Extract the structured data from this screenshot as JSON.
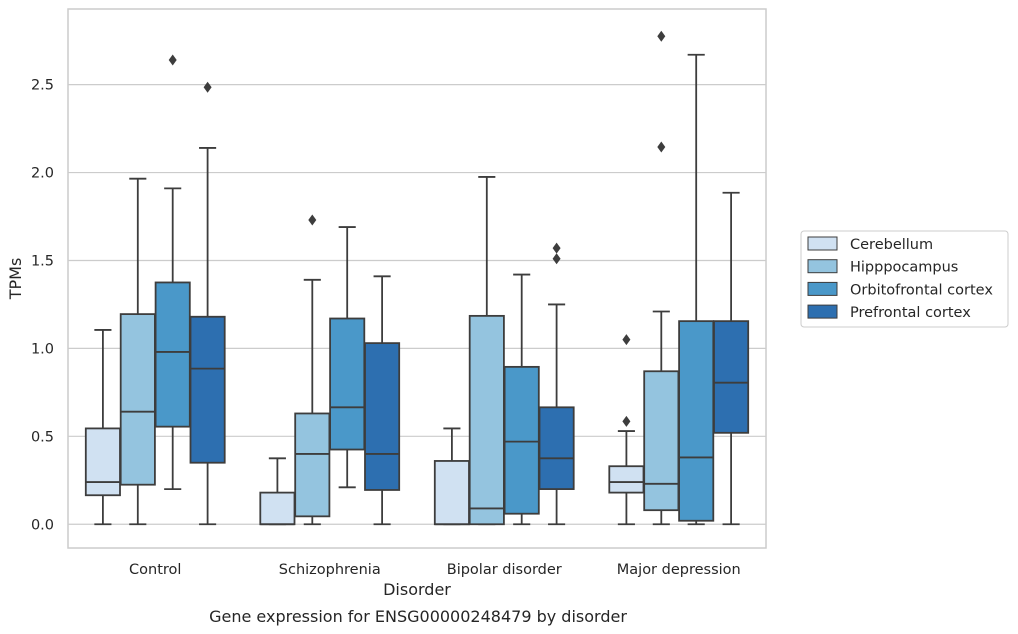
{
  "caption": "Gene expression for ENSG00000248479 by disorder",
  "chart_data": {
    "type": "box",
    "xlabel": "Disorder",
    "ylabel": "TPMs",
    "ylim": [
      -0.135,
      2.93
    ],
    "yticks": [
      0.0,
      0.5,
      1.0,
      1.5,
      2.0,
      2.5
    ],
    "ytick_labels": [
      "0.0",
      "0.5",
      "1.0",
      "1.5",
      "2.0",
      "2.5"
    ],
    "categories": [
      "Control",
      "Schizophrenia",
      "Bipolar disorder",
      "Major depression"
    ],
    "grid": "horizontal",
    "legend_position": "right",
    "series": [
      {
        "name": "Cerebellum",
        "color": "#d0e1f2",
        "boxes": [
          {
            "min": 0.0,
            "q1": 0.165,
            "median": 0.24,
            "q3": 0.545,
            "max": 1.105,
            "outliers": []
          },
          {
            "min": 0.0,
            "q1": 0.0,
            "median": 0.0,
            "q3": 0.18,
            "max": 0.375,
            "outliers": []
          },
          {
            "min": 0.0,
            "q1": 0.0,
            "median": 0.0,
            "q3": 0.36,
            "max": 0.545,
            "outliers": []
          },
          {
            "min": 0.0,
            "q1": 0.18,
            "median": 0.24,
            "q3": 0.33,
            "max": 0.53,
            "outliers": [
              0.585,
              1.05
            ]
          }
        ]
      },
      {
        "name": "Hipppocampus",
        "color": "#94c4df",
        "boxes": [
          {
            "min": 0.0,
            "q1": 0.225,
            "median": 0.64,
            "q3": 1.195,
            "max": 1.965,
            "outliers": []
          },
          {
            "min": 0.0,
            "q1": 0.045,
            "median": 0.4,
            "q3": 0.63,
            "max": 1.39,
            "outliers": [
              1.73
            ]
          },
          {
            "min": 0.0,
            "q1": 0.0,
            "median": 0.09,
            "q3": 1.185,
            "max": 1.975,
            "outliers": []
          },
          {
            "min": 0.0,
            "q1": 0.08,
            "median": 0.23,
            "q3": 0.87,
            "max": 1.21,
            "outliers": [
              2.145,
              2.775
            ]
          }
        ]
      },
      {
        "name": "Orbitofrontal cortex",
        "color": "#4a98c9",
        "boxes": [
          {
            "min": 0.2,
            "q1": 0.555,
            "median": 0.98,
            "q3": 1.375,
            "max": 1.91,
            "outliers": [
              2.64
            ]
          },
          {
            "min": 0.21,
            "q1": 0.425,
            "median": 0.665,
            "q3": 1.17,
            "max": 1.69,
            "outliers": []
          },
          {
            "min": 0.0,
            "q1": 0.06,
            "median": 0.47,
            "q3": 0.895,
            "max": 1.42,
            "outliers": []
          },
          {
            "min": 0.0,
            "q1": 0.02,
            "median": 0.38,
            "q3": 1.155,
            "max": 2.67,
            "outliers": []
          }
        ]
      },
      {
        "name": "Prefrontal cortex",
        "color": "#2d6fb0",
        "boxes": [
          {
            "min": 0.0,
            "q1": 0.35,
            "median": 0.885,
            "q3": 1.18,
            "max": 2.14,
            "outliers": [
              2.485
            ]
          },
          {
            "min": 0.0,
            "q1": 0.195,
            "median": 0.4,
            "q3": 1.03,
            "max": 1.41,
            "outliers": []
          },
          {
            "min": 0.0,
            "q1": 0.2,
            "median": 0.375,
            "q3": 0.665,
            "max": 1.25,
            "outliers": [
              1.51,
              1.57
            ]
          },
          {
            "min": 0.0,
            "q1": 0.52,
            "median": 0.805,
            "q3": 1.155,
            "max": 1.885,
            "outliers": []
          }
        ]
      }
    ]
  }
}
